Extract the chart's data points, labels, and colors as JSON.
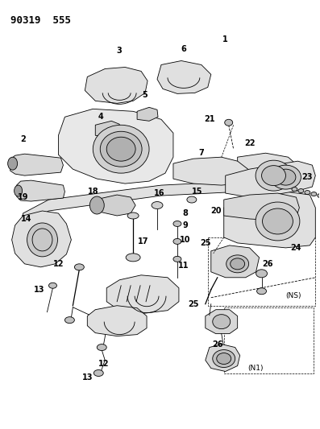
{
  "header_text": "90319  555",
  "bg_color": "#ffffff",
  "line_color": "#000000",
  "fig_width": 3.97,
  "fig_height": 5.33,
  "dpi": 100,
  "header_fontsize": 9,
  "header_fontweight": "bold"
}
